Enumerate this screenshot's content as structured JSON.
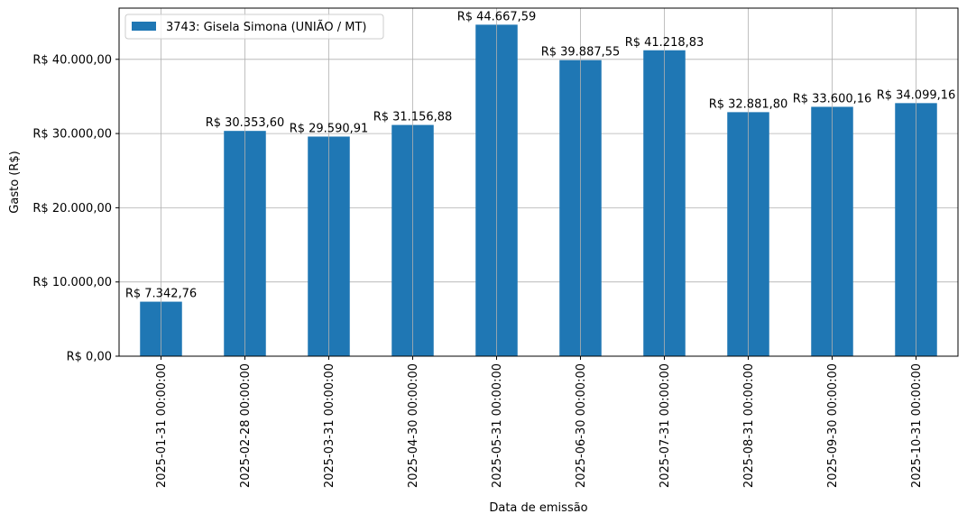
{
  "chart_data": {
    "type": "bar",
    "categories": [
      "2025-01-31 00:00:00",
      "2025-02-28 00:00:00",
      "2025-03-31 00:00:00",
      "2025-04-30 00:00:00",
      "2025-05-31 00:00:00",
      "2025-06-30 00:00:00",
      "2025-07-31 00:00:00",
      "2025-08-31 00:00:00",
      "2025-09-30 00:00:00",
      "2025-10-31 00:00:00"
    ],
    "series": [
      {
        "name": "3743: Gisela Simona (UNIÃO / MT)",
        "values": [
          7342.76,
          30353.6,
          29590.91,
          31156.88,
          44667.59,
          39887.55,
          41218.83,
          32881.8,
          33600.16,
          34099.16
        ],
        "labels": [
          "R$ 7.342,76",
          "R$ 30.353,60",
          "R$ 29.590,91",
          "R$ 31.156,88",
          "R$ 44.667,59",
          "R$ 39.887,55",
          "R$ 41.218,83",
          "R$ 32.881,80",
          "R$ 33.600,16",
          "R$ 34.099,16"
        ],
        "color": "#1f77b4"
      }
    ],
    "xlabel": "Data de emissão",
    "ylabel": "Gasto (R$)",
    "ylim": [
      0,
      46900
    ],
    "yticks": [
      0,
      10000,
      20000,
      30000,
      40000
    ],
    "ytick_labels": [
      "R$ 0,00",
      "R$ 10.000,00",
      "R$ 20.000,00",
      "R$ 30.000,00",
      "R$ 40.000,00"
    ],
    "grid": true,
    "legend_position": "top-left"
  }
}
